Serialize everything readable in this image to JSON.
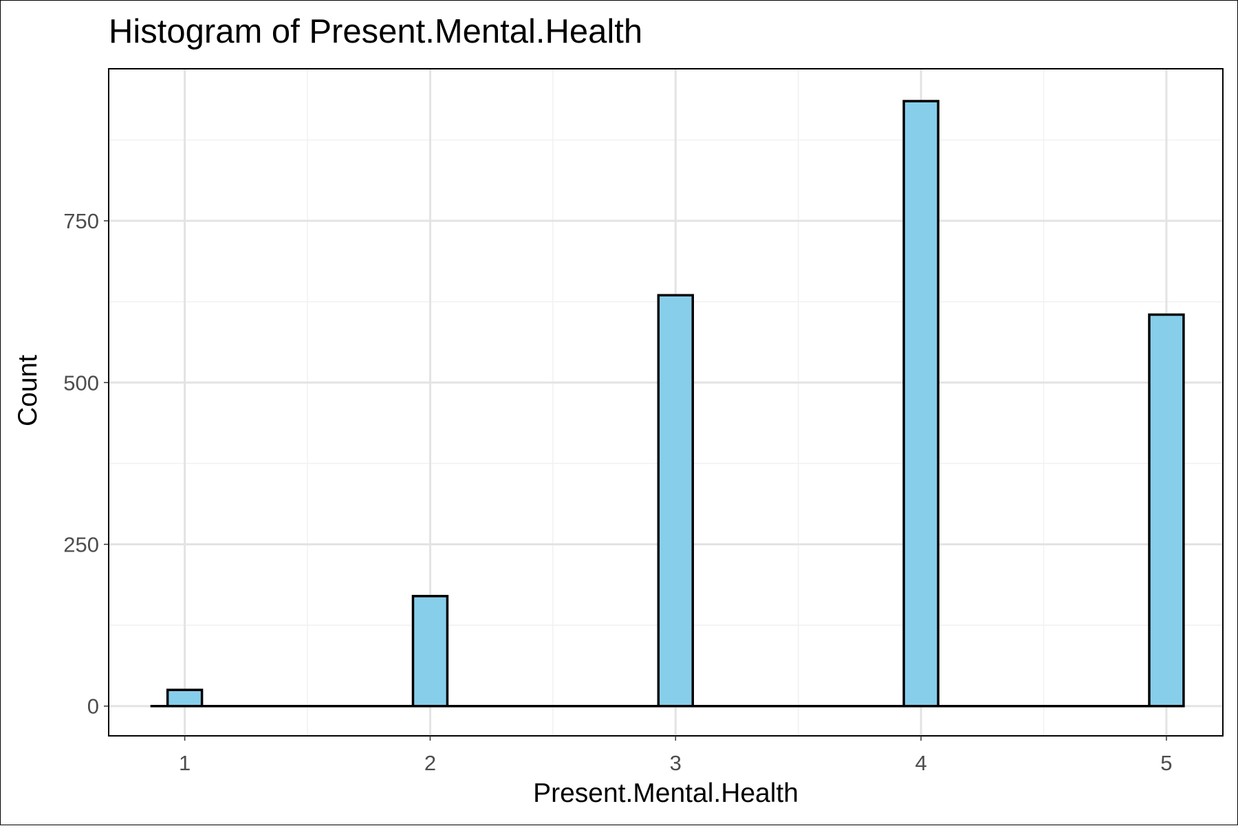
{
  "chart_data": {
    "type": "bar",
    "title": "Histogram of Present.Mental.Health",
    "xlabel": "Present.Mental.Health",
    "ylabel": "Count",
    "categories": [
      1,
      2,
      3,
      4,
      5
    ],
    "values": [
      25,
      170,
      635,
      935,
      605
    ],
    "xlim": [
      0.69,
      5.23
    ],
    "ylim": [
      -46,
      985
    ],
    "xticks": [
      1,
      2,
      3,
      4,
      5
    ],
    "yticks": [
      0,
      250,
      500,
      750
    ],
    "bar_width": 0.14,
    "baseline_extent": [
      0.86,
      5.07
    ],
    "grid": true,
    "colors": {
      "bar_fill": "#87ceeb",
      "bar_stroke": "#000000"
    }
  }
}
